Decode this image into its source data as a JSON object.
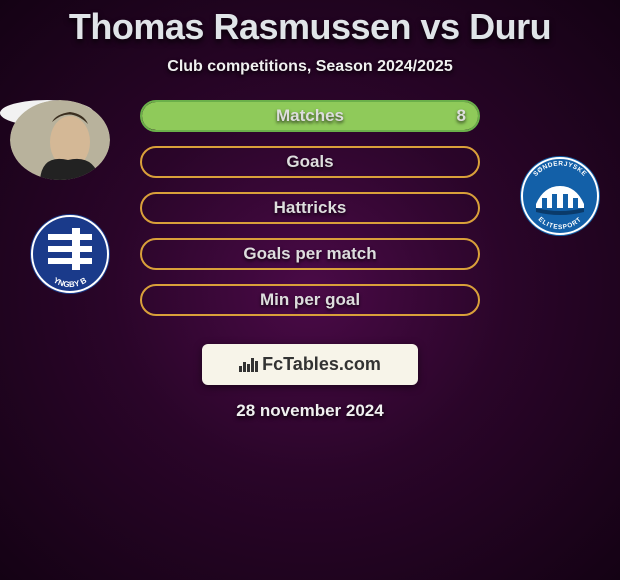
{
  "title": "Thomas Rasmussen vs Duru",
  "subtitle": "Club competitions, Season 2024/2025",
  "date": "28 november 2024",
  "brand": "FcTables.com",
  "colors": {
    "bar1_border": "#6bb04a",
    "bar1_fill": "#8fca5a",
    "bar_default_border": "#d9a03a",
    "bar_default_fill": "#2a0529"
  },
  "portrait_left": {
    "bg": "#b8b29c",
    "face": "#d4b896",
    "hair": "#3a2e1f"
  },
  "club_left": {
    "bg": "#1a3a8a",
    "ring": "#ffffff",
    "text": "YNGBY B"
  },
  "club_right": {
    "bg": "#1360a8",
    "bridge": "#ffffff",
    "text_top": "SØNDERJYSKE",
    "text_bottom": "ELITESPORT"
  },
  "bars": [
    {
      "label": "Matches",
      "value_right": "8",
      "fill_pct": 100,
      "style": "green"
    },
    {
      "label": "Goals",
      "value_right": "",
      "fill_pct": 0,
      "style": "orange"
    },
    {
      "label": "Hattricks",
      "value_right": "",
      "fill_pct": 0,
      "style": "orange"
    },
    {
      "label": "Goals per match",
      "value_right": "",
      "fill_pct": 0,
      "style": "orange"
    },
    {
      "label": "Min per goal",
      "value_right": "",
      "fill_pct": 0,
      "style": "orange"
    }
  ]
}
